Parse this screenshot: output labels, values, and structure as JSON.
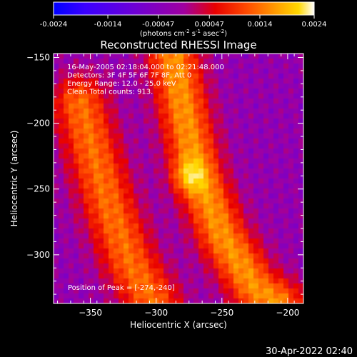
{
  "colorbar": {
    "ticks": [
      "-0.0024",
      "-0.0014",
      "-0.00047",
      "0.00047",
      "0.0014",
      "0.0024"
    ],
    "units_parts": {
      "a": "(photons cm",
      "b": "-2",
      "c": " s",
      "d": "-1",
      "e": " asec",
      "f": "-2",
      "g": ")"
    }
  },
  "chart_data": {
    "type": "heatmap",
    "title": "Reconstructed RHESSI Image",
    "xlabel": "Heliocentric X (arcsec)",
    "ylabel": "Heliocentric Y (arcsec)",
    "xlim": [
      -378,
      -188
    ],
    "ylim": [
      -337,
      -147
    ],
    "x_ticks": [
      -350,
      -300,
      -250,
      -200
    ],
    "y_ticks": [
      -150,
      -200,
      -250,
      -300
    ],
    "x_tick_labels": [
      "−350",
      "−300",
      "−250",
      "−200"
    ],
    "y_tick_labels": [
      "−150",
      "−200",
      "−250",
      "−300"
    ],
    "color_range": [
      -0.0024,
      0.0024
    ],
    "colormap": [
      "#0000ff",
      "#3a00ff",
      "#6a00d8",
      "#a000a0",
      "#e80000",
      "#ff4a00",
      "#ff9a00",
      "#ffd800",
      "#ffffff"
    ],
    "bands": [
      {
        "label": "left bright ridge",
        "points": [
          [
            -358,
            -185
          ],
          [
            -347,
            -225
          ],
          [
            -335,
            -265
          ],
          [
            -320,
            -305
          ],
          [
            -302,
            -337
          ]
        ],
        "width": 52,
        "intensity": 0.0016
      },
      {
        "label": "right bright ridge",
        "points": [
          [
            -287,
            -150
          ],
          [
            -278,
            -195
          ],
          [
            -268,
            -240
          ],
          [
            -250,
            -285
          ],
          [
            -225,
            -325
          ],
          [
            -208,
            -337
          ]
        ],
        "width": 48,
        "intensity": 0.0019
      }
    ],
    "peak": {
      "x": -274,
      "y": -240,
      "value": 0.0024
    },
    "annotations": [
      "16-May-2005 02:18:04.000 to 02:21:48.000",
      "Detectors: 3F 4F 5F 6F 7F 8F, Att 0",
      "Energy Range: 12.0 - 25.0 keV",
      "Clean     Total counts: 913."
    ],
    "peak_label": "Position of Peak = [-274,-240]"
  },
  "timestamp": "30-Apr-2022 02:40"
}
